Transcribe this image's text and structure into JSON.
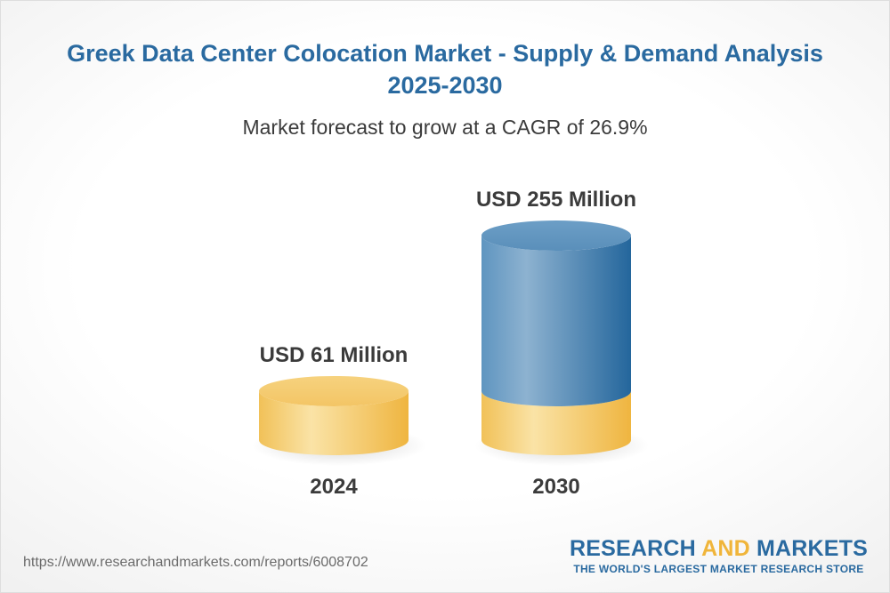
{
  "title": "Greek Data Center Colocation Market - Supply & Demand Analysis 2025-2030",
  "subtitle": "Market forecast to grow at a CAGR of 26.9%",
  "chart_data": {
    "type": "bar",
    "categories": [
      "2024",
      "2030"
    ],
    "values": [
      61,
      255
    ],
    "value_labels": [
      "USD 61 Million",
      "USD 255 Million"
    ],
    "unit": "USD Million",
    "colors": {
      "base": "#f2c35a",
      "growth": "#2f6ea3"
    }
  },
  "source_url": "https://www.researchandmarkets.com/reports/6008702",
  "brand": {
    "word1": "RESEARCH",
    "word2": "AND",
    "word3": "MARKETS",
    "tagline": "THE WORLD'S LARGEST MARKET RESEARCH STORE"
  }
}
